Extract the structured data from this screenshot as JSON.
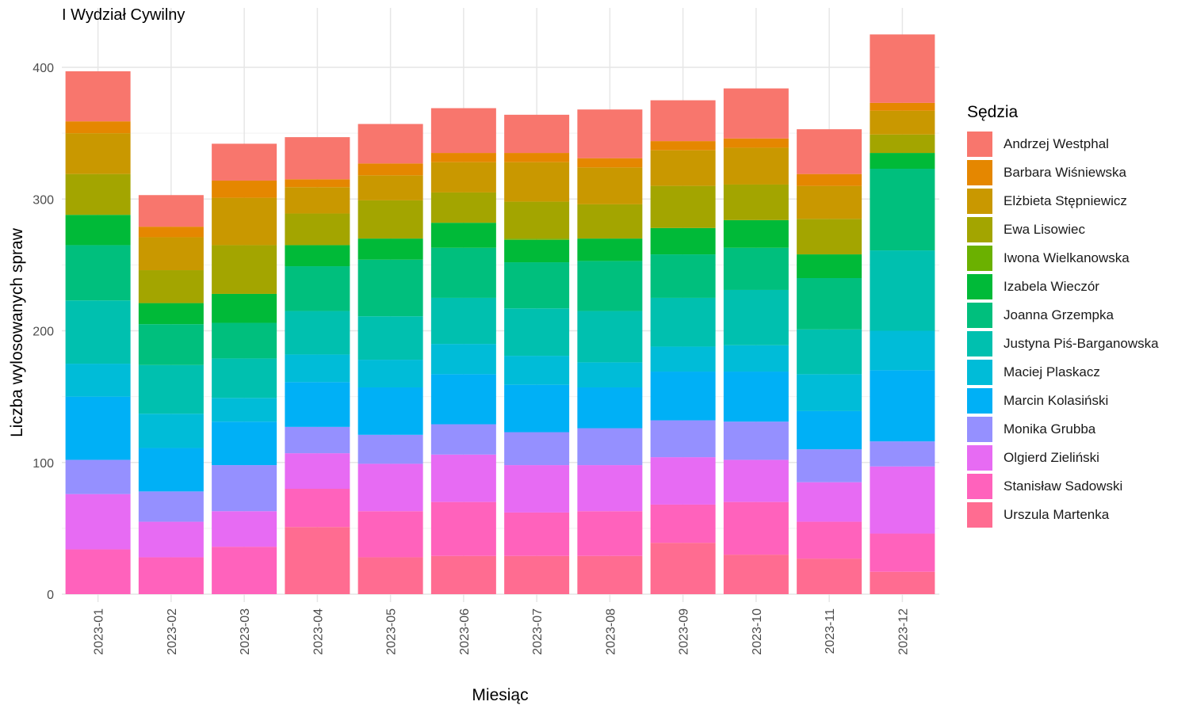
{
  "chart_data": {
    "type": "bar",
    "stacked": true,
    "title": "I Wydział Cywilny",
    "xlabel": "Miesiąc",
    "ylabel": "Liczba wylosowanych spraw",
    "legend_title": "Sędzia",
    "legend_position": "right",
    "grid": true,
    "ylim": [
      0,
      440
    ],
    "yticks": [
      0,
      100,
      200,
      300,
      400
    ],
    "categories": [
      "2023-01",
      "2023-02",
      "2023-03",
      "2023-04",
      "2023-05",
      "2023-06",
      "2023-07",
      "2023-08",
      "2023-09",
      "2023-10",
      "2023-11",
      "2023-12"
    ],
    "series": [
      {
        "name": "Andrzej Westphal",
        "color": "#F8766D",
        "values": [
          38,
          24,
          28,
          32,
          30,
          34,
          29,
          37,
          31,
          38,
          34,
          52
        ]
      },
      {
        "name": "Barbara Wiśniewska",
        "color": "#E58700",
        "values": [
          9,
          8,
          13,
          6,
          9,
          7,
          7,
          7,
          7,
          7,
          9,
          6
        ]
      },
      {
        "name": "Elżbieta Stępniewicz",
        "color": "#C99800",
        "values": [
          31,
          25,
          36,
          20,
          19,
          23,
          30,
          28,
          27,
          28,
          25,
          18
        ]
      },
      {
        "name": "Ewa Lisowiec",
        "color": "#A3A500",
        "values": [
          31,
          25,
          37,
          24,
          29,
          23,
          28,
          26,
          32,
          27,
          27,
          14
        ]
      },
      {
        "name": "Iwona Wielkanowska",
        "color": "#6BB100",
        "values": [
          0,
          0,
          0,
          0,
          0,
          0,
          1,
          0,
          0,
          0,
          0,
          0
        ]
      },
      {
        "name": "Izabela Wieczór",
        "color": "#00BA38",
        "values": [
          23,
          16,
          22,
          16,
          16,
          19,
          17,
          17,
          20,
          21,
          18,
          12
        ]
      },
      {
        "name": "Joanna Grzempka",
        "color": "#00BF7D",
        "values": [
          42,
          31,
          27,
          34,
          43,
          38,
          35,
          38,
          33,
          32,
          39,
          62
        ]
      },
      {
        "name": "Justyna Piś-Barganowska",
        "color": "#00C0AF",
        "values": [
          48,
          37,
          30,
          33,
          33,
          35,
          36,
          39,
          37,
          42,
          34,
          61
        ]
      },
      {
        "name": "Maciej Plaskacz",
        "color": "#00BCD8",
        "values": [
          25,
          26,
          18,
          21,
          21,
          23,
          22,
          19,
          19,
          20,
          28,
          30
        ]
      },
      {
        "name": "Marcin Kolasiński",
        "color": "#00B0F6",
        "values": [
          48,
          33,
          33,
          34,
          36,
          38,
          36,
          31,
          37,
          38,
          29,
          54
        ]
      },
      {
        "name": "Monika Grubba",
        "color": "#9590FF",
        "values": [
          26,
          23,
          35,
          20,
          22,
          23,
          25,
          28,
          28,
          29,
          25,
          19
        ]
      },
      {
        "name": "Olgierd Zieliński",
        "color": "#E76BF3",
        "values": [
          42,
          27,
          27,
          27,
          36,
          36,
          36,
          35,
          36,
          32,
          30,
          51
        ]
      },
      {
        "name": "Stanisław Sadowski",
        "color": "#FF62BC",
        "values": [
          34,
          28,
          36,
          29,
          35,
          41,
          33,
          34,
          29,
          40,
          28,
          29
        ]
      },
      {
        "name": "Urszula Martenka",
        "color": "#FF6C91",
        "values": [
          0,
          0,
          0,
          51,
          28,
          29,
          29,
          29,
          39,
          30,
          27,
          17
        ]
      }
    ]
  }
}
